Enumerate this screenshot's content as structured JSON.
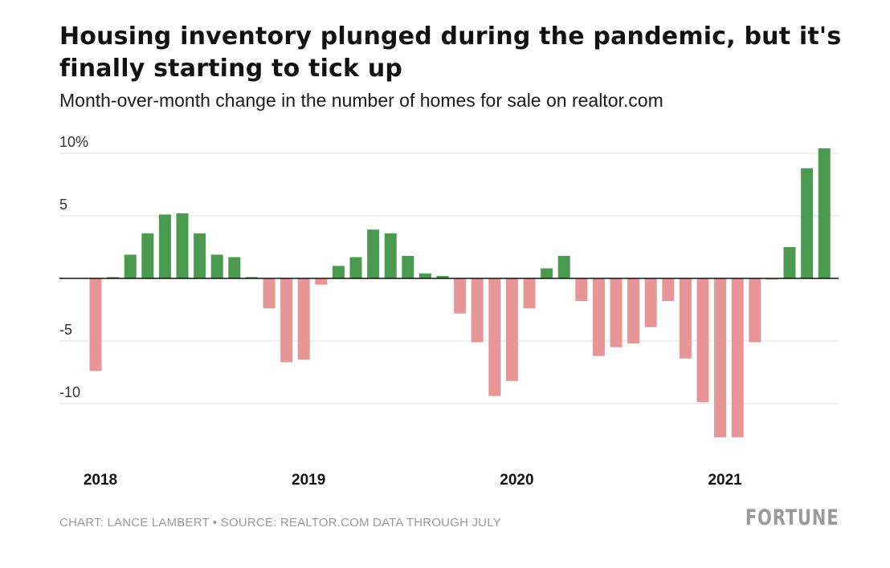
{
  "chart_data": {
    "type": "bar",
    "title": "Housing inventory plunged during the pandemic, but it's finally starting to tick up",
    "subtitle": "Month-over-month change in the number of homes for sale on realtor.com",
    "xlabel": "",
    "ylabel": "",
    "ylim": [
      -14,
      10.5
    ],
    "y_ticks": [
      {
        "value": 10,
        "label": "10%"
      },
      {
        "value": 5,
        "label": "5"
      },
      {
        "value": -5,
        "label": "-5"
      },
      {
        "value": -10,
        "label": "-10"
      }
    ],
    "x_ticks": [
      {
        "label": "2018",
        "month_index": 0
      },
      {
        "label": "2019",
        "month_index": 12
      },
      {
        "label": "2020",
        "month_index": 24
      },
      {
        "label": "2021",
        "month_index": 36
      }
    ],
    "grid": true,
    "colors": {
      "positive": "#4a9a4f",
      "negative": "#e79597",
      "grid": "#dddddd",
      "zero_line": "#111111"
    },
    "months": [
      "2018-01",
      "2018-02",
      "2018-03",
      "2018-04",
      "2018-05",
      "2018-06",
      "2018-07",
      "2018-08",
      "2018-09",
      "2018-10",
      "2018-11",
      "2018-12",
      "2019-01",
      "2019-02",
      "2019-03",
      "2019-04",
      "2019-05",
      "2019-06",
      "2019-07",
      "2019-08",
      "2019-09",
      "2019-10",
      "2019-11",
      "2019-12",
      "2020-01",
      "2020-02",
      "2020-03",
      "2020-04",
      "2020-05",
      "2020-06",
      "2020-07",
      "2020-08",
      "2020-09",
      "2020-10",
      "2020-11",
      "2020-12",
      "2021-01",
      "2021-02",
      "2021-03",
      "2021-04",
      "2021-05",
      "2021-06",
      "2021-07"
    ],
    "values": [
      -7.4,
      0.1,
      1.9,
      3.6,
      5.1,
      5.2,
      3.6,
      1.9,
      1.7,
      0.1,
      -2.4,
      -6.7,
      -6.5,
      -0.5,
      1.0,
      1.7,
      3.9,
      3.6,
      1.8,
      0.4,
      0.2,
      -2.8,
      -5.1,
      -9.4,
      -8.2,
      -2.4,
      0.8,
      1.8,
      -1.8,
      -6.2,
      -5.5,
      -5.2,
      -3.9,
      -1.8,
      -6.4,
      -9.9,
      -12.7,
      -12.7,
      -5.1,
      -0.1,
      2.5,
      8.8,
      10.4
    ]
  },
  "footer": {
    "credit": "CHART: LANCE LAMBERT • SOURCE: REALTOR.COM DATA THROUGH JULY",
    "brand": "FORTUNE"
  }
}
